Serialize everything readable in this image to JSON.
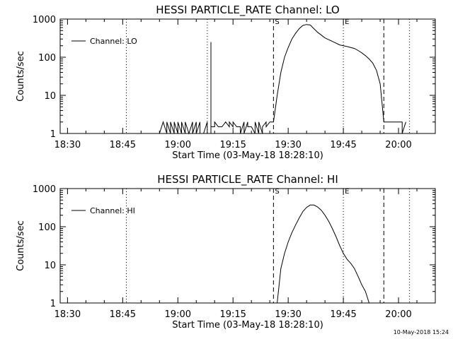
{
  "timestamp": "10-May-2018 15:24",
  "chart_data": [
    {
      "type": "line",
      "title": "HESSI PARTICLE_RATE Channel: LO",
      "xlabel": "Start Time (03-May-18 18:28:10)",
      "ylabel": "Counts/sec",
      "yscale": "log",
      "ylim": [
        1,
        1000
      ],
      "xlim": [
        "18:28",
        "20:10"
      ],
      "x_ticks": [
        "18:30",
        "18:45",
        "19:00",
        "19:15",
        "19:30",
        "19:45",
        "20:00"
      ],
      "y_ticks": [
        "1",
        "10",
        "100",
        "1000"
      ],
      "legend": {
        "placement": "top-left",
        "entries": [
          "Channel: LO"
        ]
      },
      "markers": [
        {
          "type": "dotted",
          "time": "18:46"
        },
        {
          "type": "dotted",
          "time": "19:08"
        },
        {
          "type": "dashed",
          "label": "S",
          "time": "19:26"
        },
        {
          "type": "dotted",
          "label": "E",
          "time": "19:45"
        },
        {
          "type": "dashed",
          "time": "19:56"
        },
        {
          "type": "dotted",
          "time": "20:03"
        }
      ],
      "series": [
        {
          "x": [
            "18:55",
            "18:56",
            "18:57",
            "18:57",
            "18:58",
            "18:58",
            "18:59",
            "18:59",
            "19:00",
            "19:00",
            "19:01",
            "19:01",
            "19:02",
            "19:02",
            "19:03",
            "19:04",
            "19:04",
            "19:05",
            "19:05",
            "19:06",
            "19:06",
            "19:07",
            "19:08",
            "19:08",
            "19:09",
            "19:09",
            "19:09",
            "19:10",
            "19:10",
            "19:11",
            "19:12",
            "19:13",
            "19:14",
            "19:14",
            "19:15",
            "19:15",
            "19:16",
            "19:17",
            "19:17",
            "19:18",
            "19:18",
            "19:19",
            "19:19",
            "19:20",
            "19:21",
            "19:21",
            "19:22",
            "19:22",
            "19:23",
            "19:23",
            "19:24",
            "19:24",
            "19:25",
            "19:26",
            "19:27",
            "19:28",
            "19:29",
            "19:30",
            "19:31",
            "19:32",
            "19:33",
            "19:34",
            "19:35",
            "19:36",
            "19:37",
            "19:38",
            "19:39",
            "19:40",
            "19:42",
            "19:44",
            "19:46",
            "19:48",
            "19:49",
            "19:50",
            "19:51",
            "19:52",
            "19:53",
            "19:54",
            "19:55",
            "19:56",
            "19:57",
            "19:58",
            "20:00",
            "20:01",
            "20:01",
            "20:02"
          ],
          "y": [
            1,
            2,
            1,
            2,
            1,
            2,
            1,
            2,
            1,
            2,
            1,
            2,
            1,
            2,
            1,
            2,
            1,
            2,
            1,
            2,
            1,
            1,
            2,
            1,
            1,
            250,
            1.5,
            1.5,
            2,
            1.5,
            1.5,
            2,
            1.5,
            2,
            1.5,
            2,
            1.5,
            1.5,
            1,
            2,
            1,
            2,
            1.5,
            1.5,
            1,
            2,
            1,
            2,
            1,
            1.5,
            2,
            1.5,
            2,
            2,
            10,
            40,
            100,
            180,
            300,
            420,
            560,
            680,
            720,
            700,
            560,
            450,
            380,
            320,
            260,
            210,
            190,
            170,
            150,
            130,
            110,
            90,
            70,
            45,
            20,
            2,
            2,
            2,
            2,
            2,
            1,
            2
          ]
        }
      ]
    },
    {
      "type": "line",
      "title": "HESSI PARTICLE_RATE Channel: HI",
      "xlabel": "Start Time (03-May-18 18:28:10)",
      "ylabel": "Counts/sec",
      "yscale": "log",
      "ylim": [
        1,
        1000
      ],
      "xlim": [
        "18:28",
        "20:10"
      ],
      "x_ticks": [
        "18:30",
        "18:45",
        "19:00",
        "19:15",
        "19:30",
        "19:45",
        "20:00"
      ],
      "y_ticks": [
        "1",
        "10",
        "100",
        "1000"
      ],
      "legend": {
        "placement": "top-left",
        "entries": [
          "Channel: HI"
        ]
      },
      "markers": [
        {
          "type": "dotted",
          "time": "18:46"
        },
        {
          "type": "dashed",
          "label": "S",
          "time": "19:26"
        },
        {
          "type": "dotted",
          "label": "E",
          "time": "19:45"
        },
        {
          "type": "dashed",
          "time": "19:56"
        },
        {
          "type": "dotted",
          "time": "20:03"
        }
      ],
      "series": [
        {
          "x": [
            "19:27",
            "19:28",
            "19:29",
            "19:30",
            "19:31",
            "19:32",
            "19:33",
            "19:34",
            "19:35",
            "19:36",
            "19:37",
            "19:38",
            "19:39",
            "19:40",
            "19:41",
            "19:42",
            "19:43",
            "19:44",
            "19:45",
            "19:46",
            "19:47",
            "19:48",
            "19:49",
            "19:50",
            "19:51",
            "19:52"
          ],
          "y": [
            1,
            8,
            20,
            40,
            70,
            110,
            170,
            250,
            320,
            370,
            370,
            330,
            270,
            200,
            140,
            90,
            55,
            32,
            20,
            14,
            11,
            8,
            5,
            3,
            2,
            1
          ]
        }
      ]
    }
  ]
}
